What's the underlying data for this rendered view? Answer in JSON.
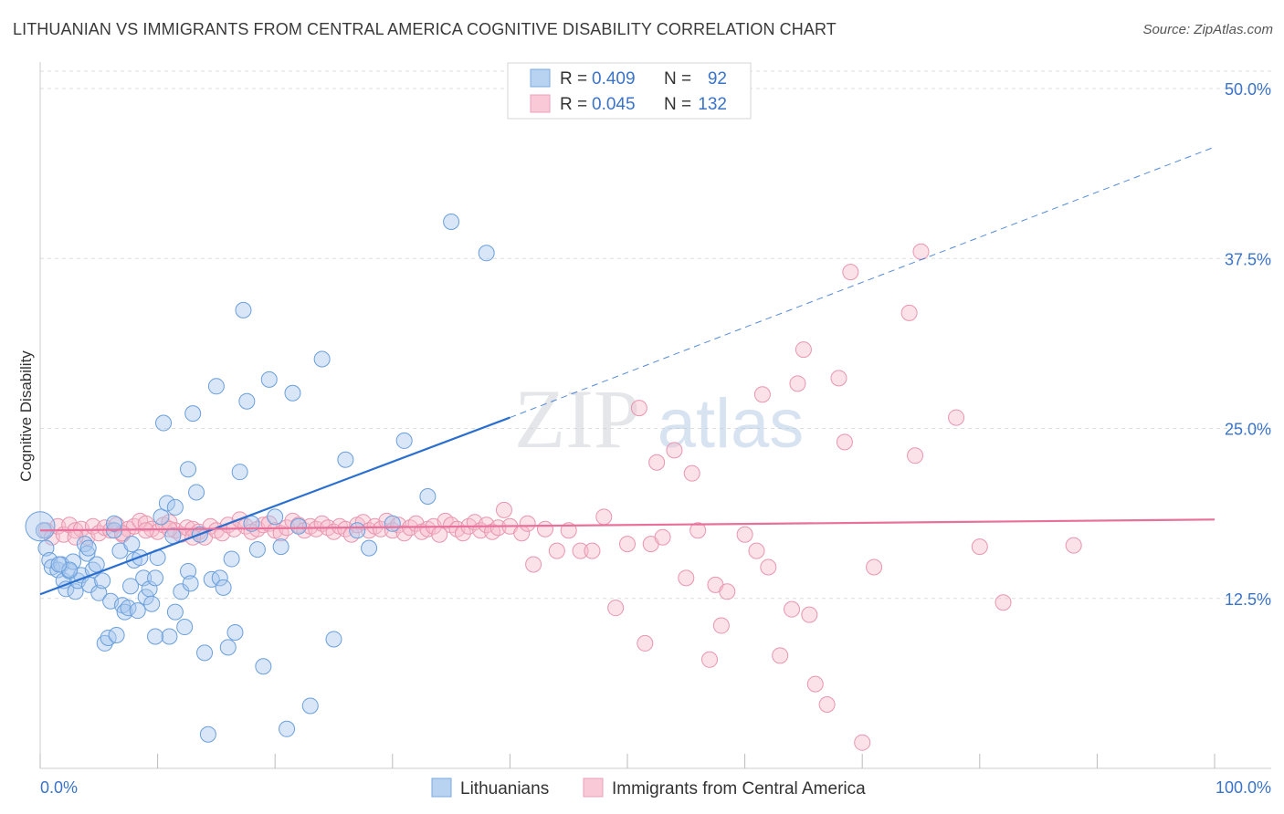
{
  "header": {
    "title": "LITHUANIAN VS IMMIGRANTS FROM CENTRAL AMERICA COGNITIVE DISABILITY CORRELATION CHART",
    "source": "Source: ZipAtlas.com"
  },
  "watermark": {
    "zip": "ZIP",
    "atlas": "atlas"
  },
  "legend_box": {
    "rows": [
      {
        "r_label": "R =",
        "r_value": "0.409",
        "n_label": "N =",
        "n_value": "92"
      },
      {
        "r_label": "R =",
        "r_value": "0.045",
        "n_label": "N =",
        "n_value": "132"
      }
    ]
  },
  "bottom_legend": [
    "Lithuanians",
    "Immigrants from Central America"
  ],
  "colors": {
    "blue_fill": "#a9c8ee",
    "blue_stroke": "#6a9fdc",
    "blue_line": "#2a6fd0",
    "pink_fill": "#f6bccd",
    "pink_stroke": "#e896b0",
    "pink_line": "#e8709a",
    "axis_value": "#3a73c8",
    "grid": "#dddddd"
  },
  "chart_data": {
    "type": "scatter",
    "title": "LITHUANIAN VS IMMIGRANTS FROM CENTRAL AMERICA COGNITIVE DISABILITY CORRELATION CHART",
    "xlabel": "",
    "ylabel": "Cognitive Disability",
    "xlim": [
      0,
      100
    ],
    "ylim": [
      0,
      50
    ],
    "x_tick_labels": [
      "0.0%",
      "100.0%"
    ],
    "y_ticks": [
      12.5,
      25.0,
      37.5,
      50.0
    ],
    "y_tick_labels": [
      "12.5%",
      "25.0%",
      "37.5%",
      "50.0%"
    ],
    "grid": "horizontal dashed",
    "series": [
      {
        "name": "Lithuanians",
        "r": 0.409,
        "n": 92,
        "trend": {
          "x0": 0,
          "y0": 12.8,
          "x1": 40,
          "y1": 25.8,
          "dashed_to": 100,
          "y_at_dashed_end": 45.7
        },
        "points": [
          [
            0.3,
            17.5
          ],
          [
            0.5,
            16.2
          ],
          [
            0.8,
            15.3
          ],
          [
            1,
            14.8
          ],
          [
            1.5,
            14.6
          ],
          [
            1.8,
            15.0
          ],
          [
            2,
            13.8
          ],
          [
            2.2,
            13.2
          ],
          [
            2.5,
            14.5
          ],
          [
            2.8,
            15.2
          ],
          [
            3,
            13.0
          ],
          [
            3.2,
            13.8
          ],
          [
            3.5,
            14.2
          ],
          [
            3.8,
            16.5
          ],
          [
            4,
            15.8
          ],
          [
            4.2,
            13.5
          ],
          [
            4.5,
            14.6
          ],
          [
            4.8,
            15.0
          ],
          [
            5,
            12.9
          ],
          [
            5.3,
            13.8
          ],
          [
            5.5,
            9.2
          ],
          [
            5.8,
            9.6
          ],
          [
            6,
            12.3
          ],
          [
            6.3,
            17.5
          ],
          [
            6.5,
            9.8
          ],
          [
            6.8,
            16.0
          ],
          [
            7,
            12.0
          ],
          [
            7.2,
            11.5
          ],
          [
            7.5,
            11.8
          ],
          [
            7.8,
            16.5
          ],
          [
            8,
            15.3
          ],
          [
            8.3,
            11.6
          ],
          [
            8.5,
            15.5
          ],
          [
            8.8,
            14.0
          ],
          [
            9,
            12.6
          ],
          [
            9.3,
            13.2
          ],
          [
            9.5,
            12.1
          ],
          [
            9.8,
            14.0
          ],
          [
            10,
            15.5
          ],
          [
            10.3,
            18.5
          ],
          [
            10.5,
            25.4
          ],
          [
            10.8,
            19.5
          ],
          [
            11,
            9.7
          ],
          [
            11.3,
            17.1
          ],
          [
            11.5,
            19.2
          ],
          [
            12,
            13.0
          ],
          [
            12.3,
            10.4
          ],
          [
            12.6,
            14.5
          ],
          [
            12.8,
            13.6
          ],
          [
            13,
            26.1
          ],
          [
            13.3,
            20.3
          ],
          [
            13.6,
            17.2
          ],
          [
            14,
            8.5
          ],
          [
            14.3,
            2.5
          ],
          [
            14.6,
            13.9
          ],
          [
            15,
            28.1
          ],
          [
            15.3,
            14.0
          ],
          [
            15.6,
            13.3
          ],
          [
            16,
            8.9
          ],
          [
            16.3,
            15.4
          ],
          [
            16.6,
            10.0
          ],
          [
            17,
            21.8
          ],
          [
            17.3,
            33.7
          ],
          [
            17.6,
            27.0
          ],
          [
            18,
            18.0
          ],
          [
            18.5,
            16.1
          ],
          [
            19,
            7.5
          ],
          [
            19.5,
            28.6
          ],
          [
            20,
            18.5
          ],
          [
            20.5,
            16.3
          ],
          [
            21,
            2.9
          ],
          [
            21.5,
            27.6
          ],
          [
            22,
            17.8
          ],
          [
            23,
            4.6
          ],
          [
            24,
            30.1
          ],
          [
            25,
            9.5
          ],
          [
            26,
            22.7
          ],
          [
            27,
            17.5
          ],
          [
            28,
            16.2
          ],
          [
            30,
            18.0
          ],
          [
            31,
            24.1
          ],
          [
            33,
            20.0
          ],
          [
            35,
            40.2
          ],
          [
            38,
            37.9
          ],
          [
            2.5,
            14.6
          ],
          [
            6.3,
            18.0
          ],
          [
            9.8,
            9.7
          ],
          [
            12.6,
            22.0
          ],
          [
            4.1,
            16.2
          ],
          [
            1.6,
            15.0
          ],
          [
            7.7,
            13.4
          ],
          [
            11.5,
            11.5
          ]
        ]
      },
      {
        "name": "Immigrants from Central America",
        "r": 0.045,
        "n": 132,
        "trend": {
          "x0": 0,
          "y0": 17.5,
          "x1": 100,
          "y1": 18.3
        },
        "points": [
          [
            0.5,
            17.5
          ],
          [
            1,
            17.0
          ],
          [
            1.5,
            17.8
          ],
          [
            2,
            17.2
          ],
          [
            2.5,
            17.9
          ],
          [
            3,
            17.5
          ],
          [
            3.5,
            17.6
          ],
          [
            4,
            17.0
          ],
          [
            4.5,
            17.8
          ],
          [
            5,
            17.3
          ],
          [
            5.5,
            17.7
          ],
          [
            6,
            17.5
          ],
          [
            6.5,
            17.9
          ],
          [
            7,
            17.2
          ],
          [
            7.5,
            17.6
          ],
          [
            8,
            17.8
          ],
          [
            8.5,
            18.2
          ],
          [
            9,
            18.0
          ],
          [
            9.5,
            17.6
          ],
          [
            10,
            17.4
          ],
          [
            10.5,
            17.9
          ],
          [
            11,
            18.1
          ],
          [
            11.5,
            17.5
          ],
          [
            12,
            17.2
          ],
          [
            12.5,
            17.7
          ],
          [
            13,
            17.6
          ],
          [
            13.5,
            17.4
          ],
          [
            14,
            17.0
          ],
          [
            14.5,
            17.8
          ],
          [
            15,
            17.5
          ],
          [
            15.5,
            17.3
          ],
          [
            16,
            17.9
          ],
          [
            16.5,
            17.6
          ],
          [
            17,
            18.3
          ],
          [
            17.5,
            17.8
          ],
          [
            18,
            17.4
          ],
          [
            18.5,
            17.6
          ],
          [
            19,
            17.9
          ],
          [
            19.5,
            18.0
          ],
          [
            20,
            17.5
          ],
          [
            20.5,
            17.3
          ],
          [
            21,
            17.7
          ],
          [
            21.5,
            18.2
          ],
          [
            22,
            17.9
          ],
          [
            22.5,
            17.5
          ],
          [
            23,
            17.8
          ],
          [
            23.5,
            17.6
          ],
          [
            24,
            18.0
          ],
          [
            24.5,
            17.7
          ],
          [
            25,
            17.4
          ],
          [
            25.5,
            17.8
          ],
          [
            26,
            17.6
          ],
          [
            26.5,
            17.2
          ],
          [
            27,
            17.9
          ],
          [
            27.5,
            18.1
          ],
          [
            28,
            17.5
          ],
          [
            28.5,
            17.8
          ],
          [
            29,
            17.6
          ],
          [
            29.5,
            18.2
          ],
          [
            30,
            17.5
          ],
          [
            30.5,
            17.9
          ],
          [
            31,
            17.3
          ],
          [
            31.5,
            17.7
          ],
          [
            32,
            18.0
          ],
          [
            32.5,
            17.4
          ],
          [
            33,
            17.6
          ],
          [
            33.5,
            17.8
          ],
          [
            34,
            17.2
          ],
          [
            34.5,
            18.2
          ],
          [
            35,
            17.9
          ],
          [
            35.5,
            17.6
          ],
          [
            36,
            17.3
          ],
          [
            36.5,
            17.8
          ],
          [
            37,
            18.1
          ],
          [
            37.5,
            17.5
          ],
          [
            38,
            17.9
          ],
          [
            38.5,
            17.4
          ],
          [
            39,
            17.7
          ],
          [
            39.5,
            19.0
          ],
          [
            40,
            17.8
          ],
          [
            41,
            17.3
          ],
          [
            41.5,
            18.0
          ],
          [
            42,
            15.0
          ],
          [
            43,
            17.6
          ],
          [
            44,
            16.0
          ],
          [
            45,
            17.5
          ],
          [
            46,
            16.0
          ],
          [
            47,
            16.0
          ],
          [
            48,
            18.5
          ],
          [
            49,
            11.8
          ],
          [
            50,
            16.5
          ],
          [
            51,
            26.5
          ],
          [
            51.5,
            9.2
          ],
          [
            52,
            16.5
          ],
          [
            52.5,
            22.5
          ],
          [
            53,
            17.0
          ],
          [
            54,
            23.4
          ],
          [
            55,
            14.0
          ],
          [
            55.5,
            21.7
          ],
          [
            56,
            17.5
          ],
          [
            57,
            8.0
          ],
          [
            57.5,
            13.5
          ],
          [
            58,
            10.5
          ],
          [
            58.5,
            13.0
          ],
          [
            60,
            17.2
          ],
          [
            61,
            16.0
          ],
          [
            61.5,
            27.5
          ],
          [
            62,
            14.8
          ],
          [
            63,
            8.3
          ],
          [
            64,
            11.7
          ],
          [
            64.5,
            28.3
          ],
          [
            65,
            30.8
          ],
          [
            65.5,
            11.3
          ],
          [
            66,
            6.2
          ],
          [
            67,
            4.7
          ],
          [
            68,
            28.7
          ],
          [
            68.5,
            24.0
          ],
          [
            69,
            36.5
          ],
          [
            70,
            1.9
          ],
          [
            71,
            14.8
          ],
          [
            74,
            33.5
          ],
          [
            74.5,
            23.0
          ],
          [
            75,
            38.0
          ],
          [
            78,
            25.8
          ],
          [
            80,
            16.3
          ],
          [
            82,
            12.2
          ],
          [
            88,
            16.4
          ],
          [
            3,
            17.0
          ],
          [
            7,
            17.3
          ],
          [
            9,
            17.5
          ],
          [
            11,
            17.6
          ],
          [
            13,
            17.0
          ]
        ]
      }
    ]
  }
}
